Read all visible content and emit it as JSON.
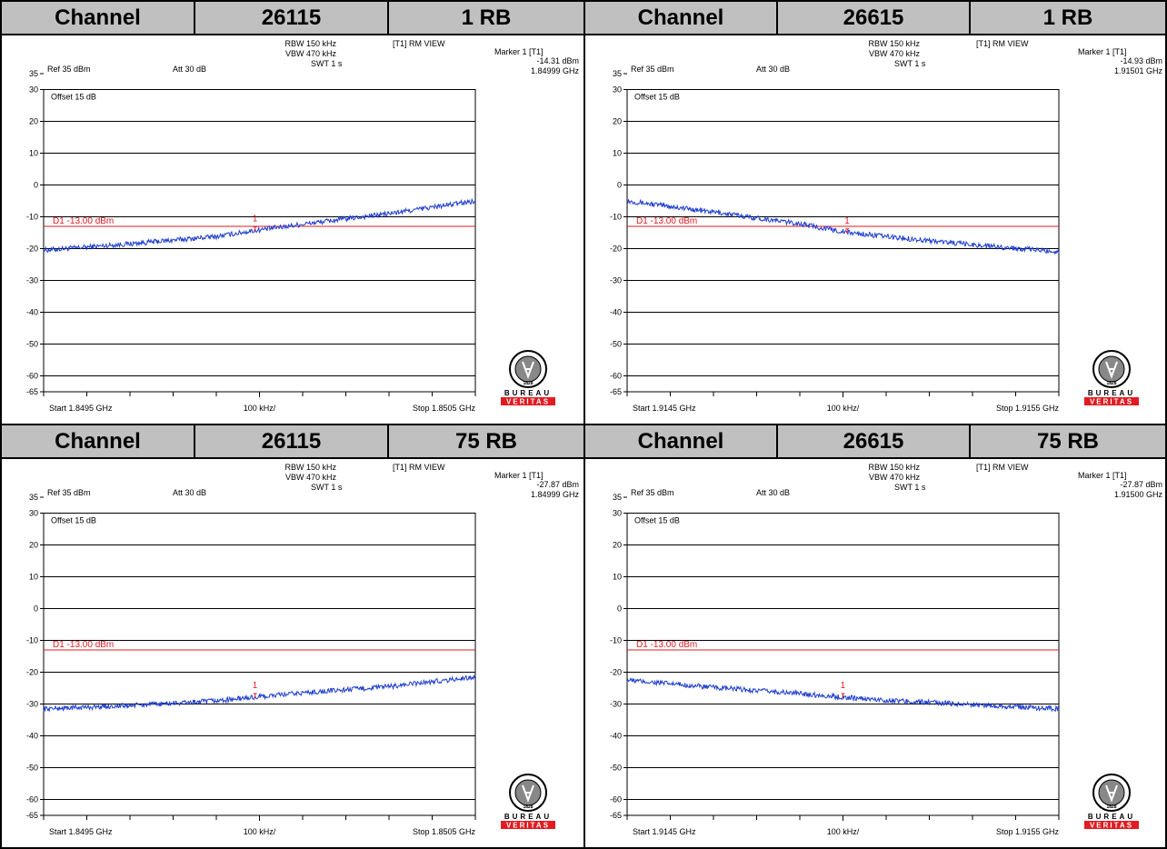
{
  "panels": [
    {
      "header": {
        "label": "Channel",
        "channel": "26115",
        "rb": "1 RB"
      },
      "settings": {
        "rbw": "RBW 150 kHz",
        "vbw": "VBW 470 kHz",
        "swt": "SWT 1 s",
        "view": "[T1] RM VIEW",
        "ref": "Ref 35 dBm",
        "att": "Att  30 dB",
        "offset": "Offset 15 dB"
      },
      "marker": {
        "title": "Marker 1 [T1]",
        "level": "-14.31 dBm",
        "freq": "1.84999 GHz",
        "label": "1"
      },
      "limit": {
        "label": "D1 -13.00 dBm",
        "value": -13
      },
      "xaxis": {
        "start": "Start 1.8495 GHz",
        "span": "100 kHz/",
        "stop": "Stop 1.8505 GHz"
      },
      "logo": {
        "top": "BUREAU",
        "bottom": "VERITAS",
        "year": "1828"
      }
    },
    {
      "header": {
        "label": "Channel",
        "channel": "26615",
        "rb": "1 RB"
      },
      "settings": {
        "rbw": "RBW 150 kHz",
        "vbw": "VBW 470 kHz",
        "swt": "SWT 1 s",
        "view": "[T1] RM VIEW",
        "ref": "Ref 35 dBm",
        "att": "Att  30 dB",
        "offset": "Offset 15 dB"
      },
      "marker": {
        "title": "Marker 1 [T1]",
        "level": "-14.93 dBm",
        "freq": "1.91501 GHz",
        "label": "1"
      },
      "limit": {
        "label": "D1 -13.00 dBm",
        "value": -13
      },
      "xaxis": {
        "start": "Start 1.9145 GHz",
        "span": "100 kHz/",
        "stop": "Stop 1.9155 GHz"
      },
      "logo": {
        "top": "BUREAU",
        "bottom": "VERITAS",
        "year": "1828"
      }
    },
    {
      "header": {
        "label": "Channel",
        "channel": "26115",
        "rb": "75 RB"
      },
      "settings": {
        "rbw": "RBW 150 kHz",
        "vbw": "VBW 470 kHz",
        "swt": "SWT 1 s",
        "view": "[T1] RM VIEW",
        "ref": "Ref 35 dBm",
        "att": "Att  30 dB",
        "offset": "Offset 15 dB"
      },
      "marker": {
        "title": "Marker 1 [T1]",
        "level": "-27.87 dBm",
        "freq": "1.84999 GHz",
        "label": "1"
      },
      "limit": {
        "label": "D1 -13.00 dBm",
        "value": -13
      },
      "xaxis": {
        "start": "Start 1.8495 GHz",
        "span": "100 kHz/",
        "stop": "Stop 1.8505 GHz"
      },
      "logo": {
        "top": "BUREAU",
        "bottom": "VERITAS",
        "year": "1828"
      }
    },
    {
      "header": {
        "label": "Channel",
        "channel": "26615",
        "rb": "75 RB"
      },
      "settings": {
        "rbw": "RBW 150 kHz",
        "vbw": "VBW 470 kHz",
        "swt": "SWT 1 s",
        "view": "[T1] RM VIEW",
        "ref": "Ref 35 dBm",
        "att": "Att  30 dB",
        "offset": "Offset 15 dB"
      },
      "marker": {
        "title": "Marker 1 [T1]",
        "level": "-27.87 dBm",
        "freq": "1.91500 GHz",
        "label": "1"
      },
      "limit": {
        "label": "D1 -13.00 dBm",
        "value": -13
      },
      "xaxis": {
        "start": "Start 1.9145 GHz",
        "span": "100 kHz/",
        "stop": "Stop 1.9155 GHz"
      },
      "logo": {
        "top": "BUREAU",
        "bottom": "VERITAS",
        "year": "1828"
      }
    }
  ],
  "chart_data": [
    {
      "type": "line",
      "title": "",
      "xlabel": "",
      "ylabel": "",
      "x_unit": "GHz",
      "y_unit": "dBm",
      "xlim": [
        1.8495,
        1.8505
      ],
      "ylim": [
        -65,
        35
      ],
      "yticks": [
        35,
        30,
        20,
        10,
        0,
        -10,
        -20,
        -30,
        -40,
        -50,
        -60,
        -65
      ],
      "grid": true,
      "series": [
        {
          "x": [
            1.8495,
            1.8497,
            1.8499,
            1.84999,
            1.8501,
            1.8503,
            1.8505
          ],
          "values": [
            -20.5,
            -18.5,
            -16.2,
            -14.31,
            -12.3,
            -9.0,
            -5.0
          ]
        }
      ],
      "limit_line": {
        "label": "D1 -13.00 dBm",
        "value": -13
      },
      "marker": {
        "x": 1.84999,
        "y": -14.31
      }
    },
    {
      "type": "line",
      "title": "",
      "xlabel": "",
      "ylabel": "",
      "x_unit": "GHz",
      "y_unit": "dBm",
      "xlim": [
        1.9145,
        1.9155
      ],
      "ylim": [
        -65,
        35
      ],
      "yticks": [
        35,
        30,
        20,
        10,
        0,
        -10,
        -20,
        -30,
        -40,
        -50,
        -60,
        -65
      ],
      "grid": true,
      "series": [
        {
          "x": [
            1.9145,
            1.9147,
            1.9149,
            1.91501,
            1.9151,
            1.9153,
            1.9155
          ],
          "values": [
            -5.0,
            -8.5,
            -12.2,
            -14.93,
            -16.2,
            -18.8,
            -21.0
          ]
        }
      ],
      "limit_line": {
        "label": "D1 -13.00 dBm",
        "value": -13
      },
      "marker": {
        "x": 1.91501,
        "y": -14.93
      }
    },
    {
      "type": "line",
      "title": "",
      "xlabel": "",
      "ylabel": "",
      "x_unit": "GHz",
      "y_unit": "dBm",
      "xlim": [
        1.8495,
        1.8505
      ],
      "ylim": [
        -65,
        35
      ],
      "yticks": [
        35,
        30,
        20,
        10,
        0,
        -10,
        -20,
        -30,
        -40,
        -50,
        -60,
        -65
      ],
      "grid": true,
      "series": [
        {
          "x": [
            1.8495,
            1.8497,
            1.8499,
            1.84999,
            1.8501,
            1.8503,
            1.8505
          ],
          "values": [
            -31.5,
            -30.5,
            -29.0,
            -27.87,
            -26.5,
            -24.5,
            -21.5
          ]
        }
      ],
      "limit_line": {
        "label": "D1 -13.00 dBm",
        "value": -13
      },
      "marker": {
        "x": 1.84999,
        "y": -27.87
      }
    },
    {
      "type": "line",
      "title": "",
      "xlabel": "",
      "ylabel": "",
      "x_unit": "GHz",
      "y_unit": "dBm",
      "xlim": [
        1.9145,
        1.9155
      ],
      "ylim": [
        -65,
        35
      ],
      "yticks": [
        35,
        30,
        20,
        10,
        0,
        -10,
        -20,
        -30,
        -40,
        -50,
        -60,
        -65
      ],
      "grid": true,
      "series": [
        {
          "x": [
            1.9145,
            1.9147,
            1.9149,
            1.915,
            1.9151,
            1.9153,
            1.9155
          ],
          "values": [
            -22.5,
            -24.8,
            -26.7,
            -27.87,
            -28.8,
            -30.2,
            -31.5
          ]
        }
      ],
      "limit_line": {
        "label": "D1 -13.00 dBm",
        "value": -13
      },
      "marker": {
        "x": 1.915,
        "y": -27.87
      }
    }
  ]
}
